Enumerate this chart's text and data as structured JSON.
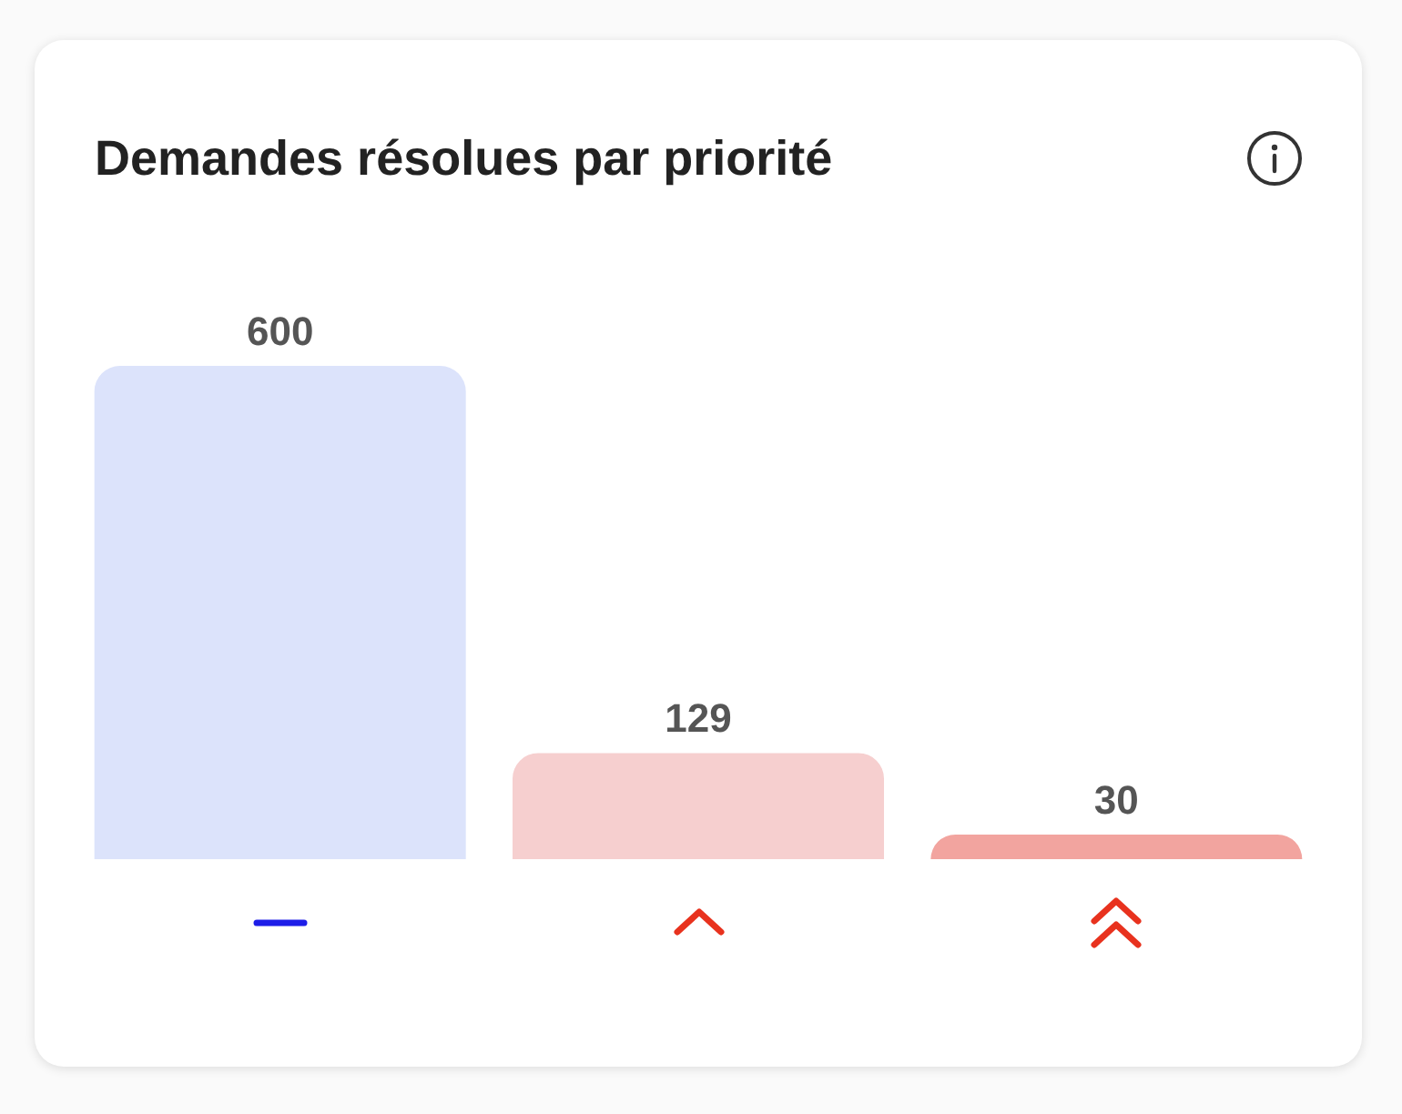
{
  "chart_data": {
    "type": "bar",
    "title": "Demandes résolues par priorité",
    "categories": [
      null,
      null,
      null
    ],
    "values": [
      600,
      129,
      30
    ],
    "colors": [
      "#dce3fb",
      "#f6cfcf",
      "#f2a49f"
    ],
    "data_labels": true
  }
}
